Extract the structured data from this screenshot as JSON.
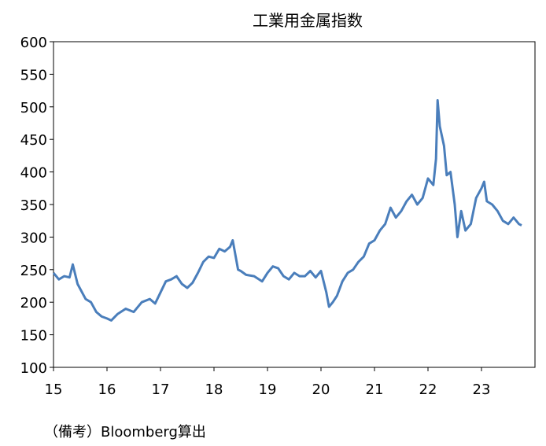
{
  "chart_data": {
    "type": "line",
    "title": "工業用金属指数",
    "xlabel": "",
    "ylabel": "",
    "ylim": [
      100,
      600
    ],
    "yticks": [
      100,
      150,
      200,
      250,
      300,
      350,
      400,
      450,
      500,
      550,
      600
    ],
    "xlim": [
      15,
      24.0
    ],
    "xticks": [
      "15",
      "16",
      "17",
      "18",
      "19",
      "20",
      "21",
      "22",
      "23"
    ],
    "grid": false,
    "legend": "none",
    "series": [
      {
        "color": "#4A7EBB",
        "x": [
          15.0,
          15.1,
          15.2,
          15.3,
          15.36,
          15.45,
          15.6,
          15.7,
          15.8,
          15.9,
          16.0,
          16.08,
          16.2,
          16.35,
          16.5,
          16.65,
          16.8,
          16.9,
          17.0,
          17.1,
          17.2,
          17.3,
          17.4,
          17.5,
          17.6,
          17.7,
          17.8,
          17.9,
          18.0,
          18.1,
          18.2,
          18.3,
          18.35,
          18.45,
          18.5,
          18.6,
          18.75,
          18.9,
          19.0,
          19.1,
          19.2,
          19.3,
          19.4,
          19.5,
          19.6,
          19.7,
          19.8,
          19.9,
          20.0,
          20.1,
          20.15,
          20.22,
          20.3,
          20.4,
          20.5,
          20.6,
          20.7,
          20.8,
          20.9,
          21.0,
          21.1,
          21.2,
          21.3,
          21.4,
          21.5,
          21.6,
          21.7,
          21.8,
          21.9,
          22.0,
          22.1,
          22.15,
          22.18,
          22.22,
          22.3,
          22.35,
          22.42,
          22.5,
          22.55,
          22.62,
          22.7,
          22.8,
          22.9,
          23.0,
          23.05,
          23.1,
          23.2,
          23.3,
          23.4,
          23.5,
          23.6,
          23.7,
          23.75
        ],
        "y": [
          245,
          235,
          240,
          238,
          258,
          228,
          205,
          200,
          185,
          178,
          175,
          172,
          182,
          190,
          185,
          200,
          205,
          198,
          215,
          232,
          235,
          240,
          228,
          222,
          230,
          245,
          262,
          270,
          268,
          282,
          278,
          285,
          295,
          250,
          248,
          242,
          240,
          232,
          245,
          255,
          252,
          240,
          235,
          245,
          240,
          240,
          248,
          238,
          248,
          215,
          193,
          200,
          210,
          232,
          245,
          250,
          262,
          270,
          290,
          295,
          310,
          320,
          345,
          330,
          340,
          355,
          365,
          350,
          360,
          390,
          380,
          420,
          510,
          470,
          440,
          395,
          400,
          350,
          300,
          340,
          310,
          320,
          360,
          375,
          385,
          355,
          350,
          340,
          325,
          320,
          330,
          320,
          318
        ]
      }
    ]
  },
  "note": "（備考）Bloomberg算出"
}
